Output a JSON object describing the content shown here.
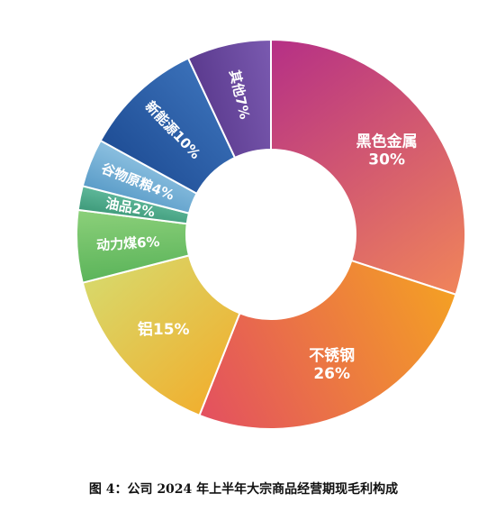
{
  "caption": "图 4：公司 2024 年上半年大宗商品经营期现毛利构成",
  "chart_data": {
    "type": "pie",
    "donut": true,
    "categories": [
      "黑色金属",
      "不锈钢",
      "铝",
      "动力煤",
      "油品",
      "谷物原粮",
      "新能源",
      "其他"
    ],
    "values": [
      30,
      26,
      15,
      6,
      2,
      4,
      10,
      7
    ],
    "labels": [
      "黑色金属\n30%",
      "不锈钢\n26%",
      "铝15%",
      "动力煤6%",
      "油品2%",
      "谷物原粮4%",
      "新能源10%",
      "其他7%"
    ],
    "colors": [
      [
        "#b52f86",
        "#f0845a"
      ],
      [
        "#f4a024",
        "#e35060"
      ],
      [
        "#f0b030",
        "#d8d86a"
      ],
      [
        "#5bb45a",
        "#8cd07a"
      ],
      [
        "#3e9a7a",
        "#5fb89a"
      ],
      [
        "#5a9cc8",
        "#8cc0e0"
      ],
      [
        "#1f4e96",
        "#3a70b8"
      ],
      [
        "#5b3a8e",
        "#7a5ab0"
      ]
    ]
  }
}
